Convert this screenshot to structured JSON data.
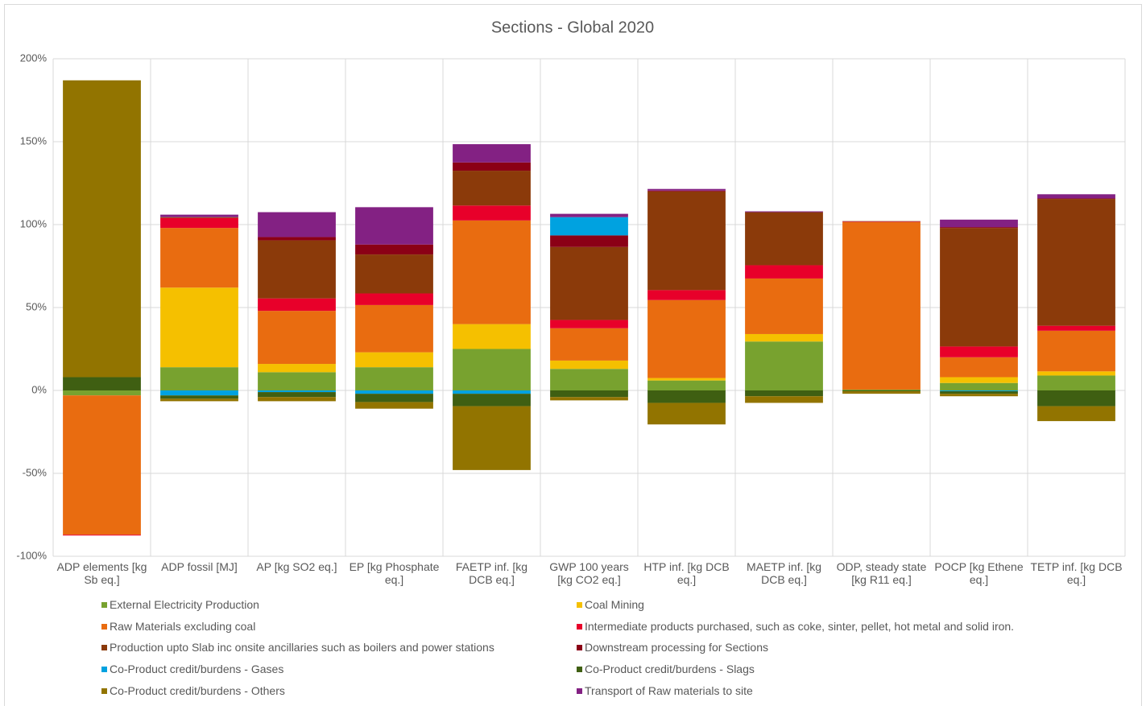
{
  "chart_data": {
    "type": "stacked-bar",
    "title": "Sections - Global 2020",
    "categories": [
      "ADP elements [kg Sb eq.]",
      "ADP fossil [MJ]",
      "AP [kg SO2 eq.]",
      "EP [kg Phosphate eq.]",
      "FAETP inf. [kg DCB eq.]",
      "GWP 100 years [kg CO2 eq.]",
      "HTP inf. [kg DCB eq.]",
      "MAETP inf. [kg DCB eq.]",
      "ODP, steady state [kg R11 eq.]",
      "POCP [kg Ethene eq.]",
      "TETP inf. [kg DCB eq.]"
    ],
    "series": [
      {
        "name": "External Electricity Production",
        "color": "#78a22f",
        "values": [
          -3,
          14,
          11,
          14,
          25,
          13,
          6,
          29.5,
          0.5,
          4.5,
          9
        ]
      },
      {
        "name": "Coal Mining",
        "color": "#f5c000",
        "values": [
          0,
          48,
          5,
          9,
          15,
          5,
          1.5,
          4.5,
          0,
          3.5,
          2.5
        ]
      },
      {
        "name": "Raw Materials excluding coal",
        "color": "#e96c10",
        "values": [
          -84,
          36,
          32,
          28.5,
          62.5,
          19.5,
          47,
          33.5,
          101,
          12,
          24.5
        ]
      },
      {
        "name": "Intermediate products purchased, such as coke, sinter, pellet, hot metal and solid iron.",
        "color": "#e8002a",
        "values": [
          -0.5,
          6,
          7.5,
          7,
          9,
          5,
          6,
          8,
          0.3,
          6.5,
          3
        ]
      },
      {
        "name": "Production upto Slab inc onsite ancillaries such as boilers and power stations",
        "color": "#8b3a0a",
        "values": [
          0,
          0.5,
          35,
          23.5,
          21,
          44,
          59.5,
          32,
          0.3,
          71.5,
          76.5
        ]
      },
      {
        "name": "Downstream processing for Sections",
        "color": "#8b0016",
        "values": [
          0,
          0,
          2,
          6,
          5,
          7,
          0.5,
          0,
          0,
          0.5,
          0.3
        ]
      },
      {
        "name": "Co-Product credit/burdens - Gases",
        "color": "#00a2e0",
        "values": [
          0,
          -3,
          -1,
          -2,
          -2,
          11,
          0,
          0,
          0,
          -0.5,
          0
        ]
      },
      {
        "name": "Co-Product credit/burdens - Slags",
        "color": "#3f5f12",
        "values": [
          8,
          -2,
          -3,
          -5,
          -7.5,
          -4,
          -7.5,
          -3.5,
          -0.5,
          -1.5,
          -9.5
        ]
      },
      {
        "name": "Co-Product credit/burdens - Others",
        "color": "#927400",
        "values": [
          179,
          -1.5,
          -2.5,
          -4,
          -38.5,
          -2,
          -13,
          -4,
          -1.5,
          -1.5,
          -9
        ]
      },
      {
        "name": "Transport of Raw materials to site",
        "color": "#832183",
        "values": [
          0,
          1.5,
          15,
          22.5,
          11,
          2,
          1,
          0.5,
          0,
          4.5,
          2.5
        ]
      }
    ],
    "ylim": [
      -100,
      200
    ],
    "yticks": [
      {
        "value": -100,
        "label": "-100%"
      },
      {
        "value": -50,
        "label": "-50%"
      },
      {
        "value": 0,
        "label": "0%"
      },
      {
        "value": 50,
        "label": "50%"
      },
      {
        "value": 100,
        "label": "100%"
      },
      {
        "value": 150,
        "label": "150%"
      },
      {
        "value": 200,
        "label": "200%"
      }
    ],
    "grid": true
  }
}
